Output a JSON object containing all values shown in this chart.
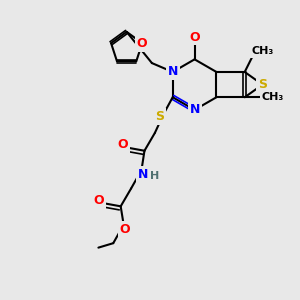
{
  "bg_color": "#e8e8e8",
  "atom_colors": {
    "C": "#000000",
    "N": "#0000ff",
    "O": "#ff0000",
    "S": "#ccaa00",
    "H": "#507070"
  },
  "bond_color": "#000000",
  "bond_width": 1.5,
  "font_size": 9,
  "fig_size": [
    3.0,
    3.0
  ],
  "dpi": 100
}
